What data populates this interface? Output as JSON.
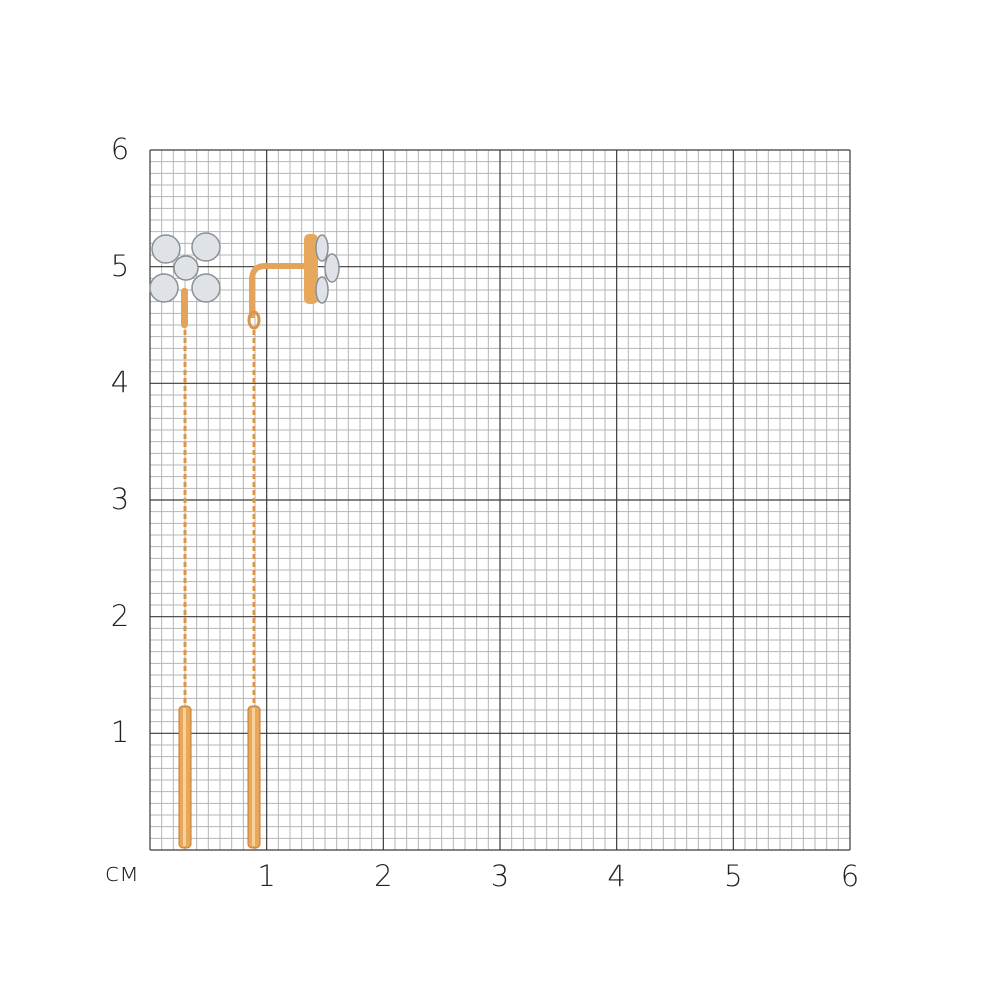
{
  "scale": {
    "unit_label": "см",
    "x_ticks": [
      "1",
      "2",
      "3",
      "4",
      "5",
      "6"
    ],
    "y_ticks": [
      "6",
      "5",
      "4",
      "3",
      "2",
      "1"
    ],
    "range_cm": [
      0,
      6
    ],
    "minor_division_mm": 1
  },
  "colors": {
    "major_grid": "#3a3a3a",
    "minor_grid": "#b5b5b5",
    "gold": "#e8a85c",
    "gold_dark": "#c07a30",
    "stone": "#dfe3e8"
  },
  "subject": {
    "left_earring_view": "front",
    "right_earring_view": "side"
  }
}
